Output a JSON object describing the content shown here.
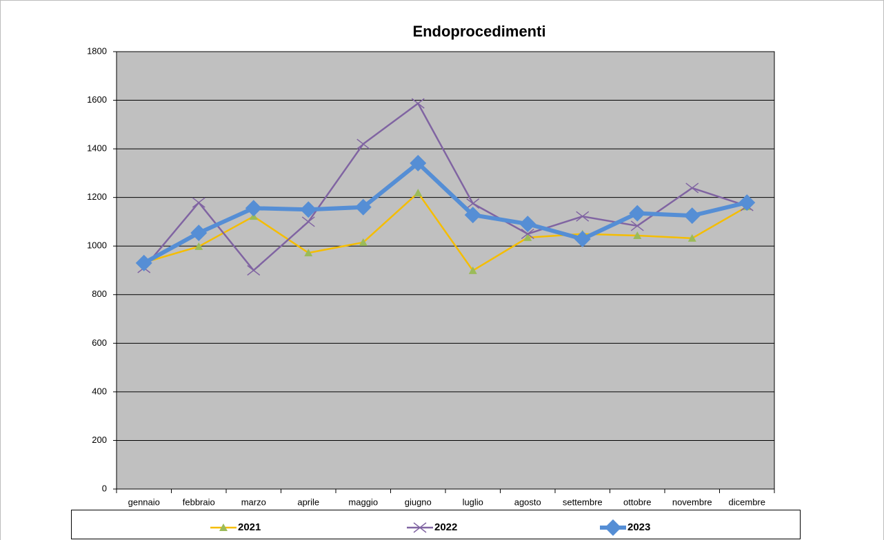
{
  "chart_data": {
    "type": "line",
    "title": "Endoprocedimenti",
    "categories": [
      "gennaio",
      "febbraio",
      "marzo",
      "aprile",
      "maggio",
      "giugno",
      "luglio",
      "agosto",
      "settembre",
      "ottobre",
      "novembre",
      "dicembre"
    ],
    "series": [
      {
        "name": "2021",
        "color": "#f5bd00",
        "marker_color": "#9bbb59",
        "marker": "triangle",
        "values": [
          932,
          998,
          1122,
          972,
          1015,
          1219,
          899,
          1035,
          1050,
          1043,
          1032,
          1162
        ]
      },
      {
        "name": "2022",
        "color": "#8064a2",
        "marker_color": "#8064a2",
        "marker": "x",
        "values": [
          910,
          1179,
          900,
          1100,
          1420,
          1587,
          1175,
          1050,
          1122,
          1083,
          1239,
          1165
        ]
      },
      {
        "name": "2023",
        "color": "#558ed5",
        "marker_color": "#558ed5",
        "marker": "diamond",
        "values": [
          930,
          1054,
          1156,
          1150,
          1160,
          1341,
          1128,
          1091,
          1029,
          1135,
          1125,
          1179
        ]
      }
    ],
    "ylim": [
      0,
      1800
    ],
    "yticks": [
      0,
      200,
      400,
      600,
      800,
      1000,
      1200,
      1400,
      1600,
      1800
    ],
    "grid": true,
    "plot_background": "#c0c0c0",
    "legend": "bottom"
  }
}
